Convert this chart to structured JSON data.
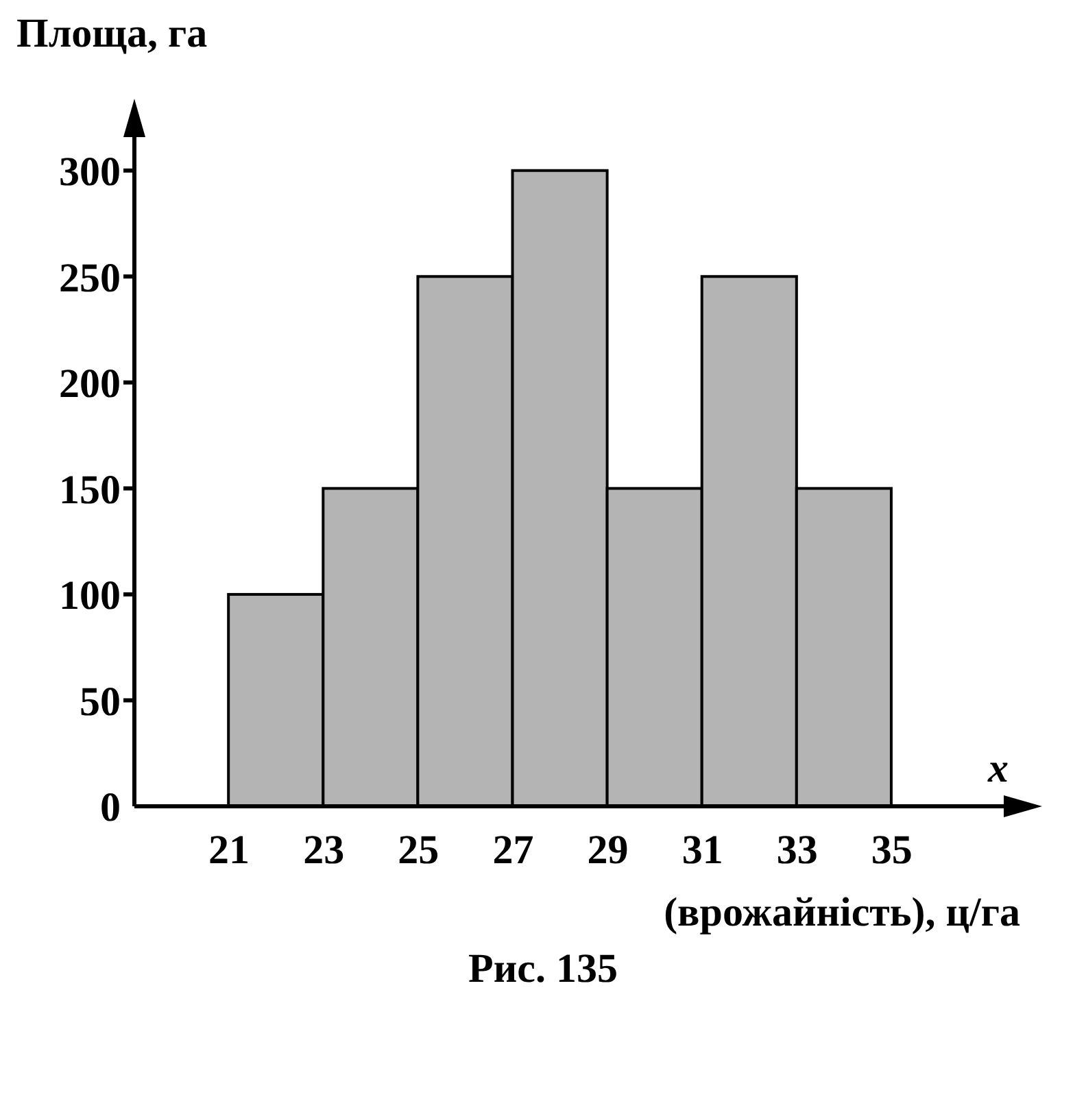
{
  "chart_data": {
    "type": "histogram",
    "ylabel": "Площа, га",
    "xlabel": "(врожайність), ц/га",
    "annotations": [
      "x",
      "Рис. 135"
    ],
    "bins": [
      21,
      23,
      25,
      27,
      29,
      31,
      33,
      35
    ],
    "values": [
      100,
      150,
      250,
      300,
      150,
      250,
      150
    ],
    "color": "#b4b4b4",
    "xlim": [
      19,
      38
    ],
    "ylim": [
      0,
      330
    ],
    "xticks": [
      21,
      23,
      25,
      27,
      29,
      31,
      33,
      35
    ],
    "yticks": [
      0,
      50,
      100,
      150,
      200,
      250,
      300
    ]
  }
}
